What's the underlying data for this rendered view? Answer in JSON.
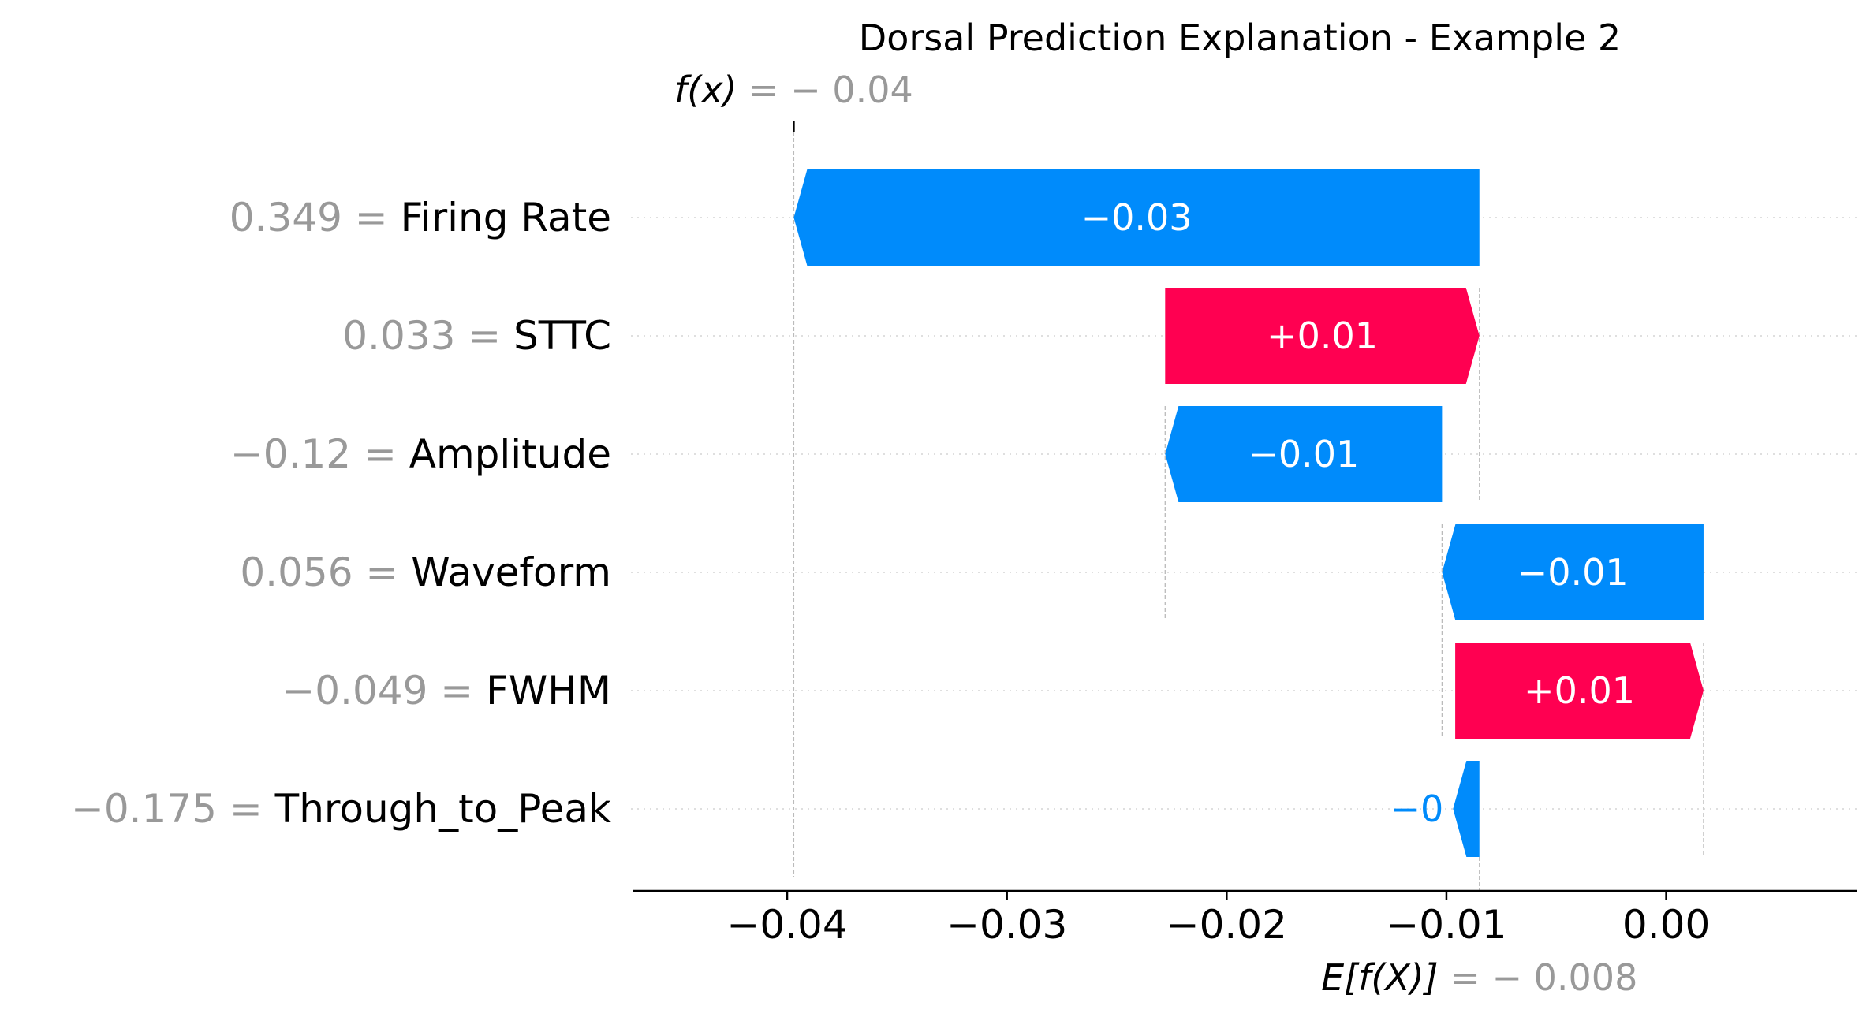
{
  "chart_data": {
    "type": "waterfall",
    "title": "Dorsal Prediction Explanation - Example 2",
    "fx": {
      "label": "f(x)",
      "value_text": "= − 0.04",
      "value": -0.0397
    },
    "base": {
      "label": "E[f(X)]",
      "value_text": "= − 0.008",
      "value": -0.0085
    },
    "features": [
      {
        "value_text": "0.349 =",
        "name": "Firing Rate",
        "start": -0.0085,
        "shap": -0.0312,
        "label": "−0.03"
      },
      {
        "value_text": "0.033 =",
        "name": "STTC",
        "start": -0.0228,
        "shap": 0.0143,
        "label": "+0.01"
      },
      {
        "value_text": "−0.12 =",
        "name": "Amplitude",
        "start": -0.0102,
        "shap": -0.0126,
        "label": "−0.01"
      },
      {
        "value_text": "0.056 =",
        "name": "Waveform",
        "start": 0.0017,
        "shap": -0.0119,
        "label": "−0.01"
      },
      {
        "value_text": "−0.049 =",
        "name": "FWHM",
        "start": -0.0096,
        "shap": 0.0113,
        "label": "+0.01"
      },
      {
        "value_text": "−0.175 =",
        "name": "Through_to_Peak",
        "start": -0.0085,
        "shap": -0.0012,
        "label": "−0"
      }
    ],
    "x_ticks": [
      {
        "value": -0.04,
        "label": "−0.04"
      },
      {
        "value": -0.03,
        "label": "−0.03"
      },
      {
        "value": -0.02,
        "label": "−0.02"
      },
      {
        "value": -0.01,
        "label": "−0.01"
      },
      {
        "value": 0.0,
        "label": "0.00"
      }
    ],
    "xlim": [
      -0.047,
      0.0087
    ],
    "colors": {
      "negative": "#008bfb",
      "positive": "#ff0051",
      "feature_value": "#999999",
      "text": "#000000"
    },
    "grid": true
  }
}
